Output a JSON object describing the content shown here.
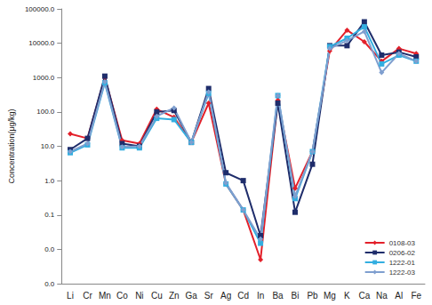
{
  "chart_data": {
    "type": "line",
    "y_label": "Concentration(μg/kg)",
    "categories": [
      "Li",
      "Cr",
      "Mn",
      "Co",
      "Ni",
      "Cu",
      "Zn",
      "Ga",
      "Sr",
      "Ag",
      "Cd",
      "In",
      "Ba",
      "Bi",
      "Pb",
      "Mg",
      "K",
      "Ca",
      "Na",
      "Al",
      "Fe"
    ],
    "series": [
      {
        "name": "0108-03",
        "color": "#e3202a",
        "marker": "diamond",
        "values": [
          23,
          17,
          1000,
          15,
          12,
          120,
          70,
          13,
          180,
          0.8,
          0.14,
          0.005,
          220,
          0.6,
          7,
          6000,
          24000,
          11000,
          3000,
          7000,
          5000
        ]
      },
      {
        "name": "0206-02",
        "color": "#1f2d6b",
        "marker": "square",
        "values": [
          8,
          17,
          1100,
          12,
          10,
          100,
          110,
          13,
          480,
          1.7,
          1.0,
          0.025,
          180,
          0.12,
          3,
          8500,
          8500,
          42000,
          4500,
          5500,
          4000
        ]
      },
      {
        "name": "1222-01",
        "color": "#33aee0",
        "marker": "square",
        "values": [
          6.5,
          11,
          700,
          9,
          9,
          65,
          60,
          13,
          350,
          0.8,
          0.14,
          0.015,
          300,
          0.3,
          7,
          8000,
          14000,
          30000,
          2500,
          4500,
          3000
        ]
      },
      {
        "name": "1222-03",
        "color": "#7f9fcf",
        "marker": "diamond",
        "values": [
          7,
          12,
          750,
          9.5,
          10,
          75,
          130,
          13,
          380,
          0.85,
          0.14,
          0.02,
          300,
          0.35,
          7,
          7000,
          12000,
          22000,
          1400,
          5000,
          3000
        ]
      }
    ],
    "log": "y",
    "ylim": [
      0.001,
      100000
    ],
    "yticks": [
      {
        "value": 0.001,
        "label": "0.0"
      },
      {
        "value": 0.01,
        "label": "0.0"
      },
      {
        "value": 0.1,
        "label": "0.1"
      },
      {
        "value": 1,
        "label": "1.0"
      },
      {
        "value": 10,
        "label": "10.0"
      },
      {
        "value": 100,
        "label": "100.0"
      },
      {
        "value": 1000,
        "label": "1000.0"
      },
      {
        "value": 10000,
        "label": "10000.0"
      },
      {
        "value": 100000,
        "label": "100000.0"
      }
    ],
    "grid": false,
    "legend": "lower right"
  }
}
